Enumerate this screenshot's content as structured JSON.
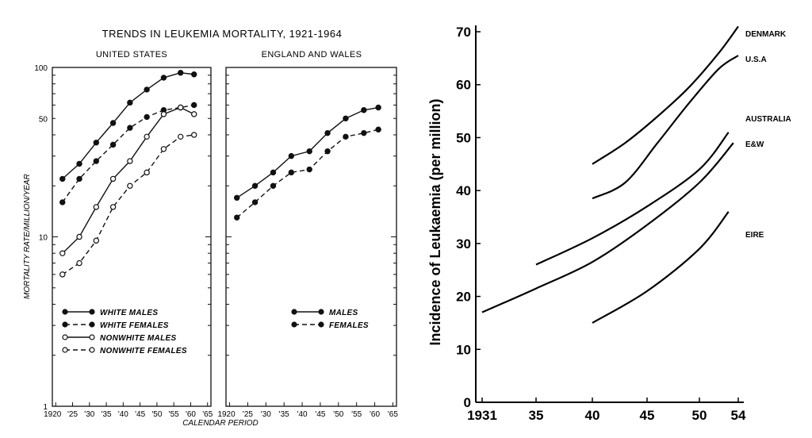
{
  "chart_data": [
    {
      "type": "line",
      "title": "TRENDS IN LEUKEMIA MORTALITY, 1921-1964",
      "ylabel": "MORTALITY RATE/MILLION/YEAR",
      "xlabel": "CALENDAR PERIOD",
      "y_scale": "log",
      "ylim": [
        1,
        100
      ],
      "y_ticks": [
        "1",
        "10",
        "50",
        "100"
      ],
      "grid": false,
      "panels": [
        {
          "name": "UNITED STATES",
          "x_ticks": [
            "1920",
            "'25",
            "'30",
            "'35",
            "'40",
            "'45",
            "'50",
            "'55",
            "'60",
            "'65"
          ],
          "series": [
            {
              "name": "WHITE MALES",
              "style": "solid-filled",
              "x": [
                1922,
                1927,
                1932,
                1937,
                1942,
                1947,
                1952,
                1957,
                1961
              ],
              "y": [
                22,
                27,
                36,
                47,
                62,
                74,
                87,
                93,
                91
              ]
            },
            {
              "name": "WHITE FEMALES",
              "style": "dashed-filled",
              "x": [
                1922,
                1927,
                1932,
                1937,
                1942,
                1947,
                1952,
                1957,
                1961
              ],
              "y": [
                16,
                22,
                28,
                35,
                44,
                51,
                56,
                58,
                60
              ]
            },
            {
              "name": "NONWHITE MALES",
              "style": "solid-open",
              "x": [
                1922,
                1927,
                1932,
                1937,
                1942,
                1947,
                1952,
                1957,
                1961
              ],
              "y": [
                8,
                10,
                15,
                22,
                28,
                39,
                53,
                58,
                53
              ]
            },
            {
              "name": "NONWHITE FEMALES",
              "style": "dashed-open",
              "x": [
                1922,
                1927,
                1932,
                1937,
                1942,
                1947,
                1952,
                1957,
                1961
              ],
              "y": [
                6,
                7,
                9.5,
                15,
                20,
                24,
                33,
                39,
                40
              ]
            }
          ]
        },
        {
          "name": "ENGLAND AND WALES",
          "x_ticks": [
            "1920",
            "'25",
            "'30",
            "'35",
            "'40",
            "'45",
            "'50",
            "'55",
            "'60",
            "'65"
          ],
          "series": [
            {
              "name": "MALES",
              "style": "solid-filled",
              "x": [
                1922,
                1927,
                1932,
                1937,
                1942,
                1947,
                1952,
                1957,
                1961
              ],
              "y": [
                17,
                20,
                24,
                30,
                32,
                41,
                50,
                56,
                58
              ]
            },
            {
              "name": "FEMALES",
              "style": "dashed-filled",
              "x": [
                1922,
                1927,
                1932,
                1937,
                1942,
                1947,
                1952,
                1957,
                1961
              ],
              "y": [
                13,
                16,
                20,
                24,
                25,
                32,
                39,
                41,
                43
              ]
            }
          ]
        }
      ],
      "legend_position": "bottom-left"
    },
    {
      "type": "line",
      "title": "",
      "ylabel": "Incidence of Leukaemia (per million)",
      "xlabel": "",
      "ylim": [
        0,
        70
      ],
      "y_ticks": [
        "0",
        "10",
        "20",
        "30",
        "40",
        "50",
        "60",
        "70"
      ],
      "x_ticks": [
        "1931",
        "35",
        "40",
        "45",
        "50",
        "54"
      ],
      "x_tick_values": [
        1931,
        1935,
        1940,
        1945,
        1950,
        1954
      ],
      "grid": false,
      "series": [
        {
          "name": "DENMARK",
          "x": [
            1940,
            1943,
            1946,
            1949,
            1952,
            1954
          ],
          "y": [
            45,
            49,
            54,
            59.5,
            66,
            71
          ]
        },
        {
          "name": "U.S.A",
          "x": [
            1940,
            1943,
            1946,
            1949,
            1952,
            1954
          ],
          "y": [
            38.5,
            41.5,
            49,
            56.5,
            63,
            65.5
          ]
        },
        {
          "name": "AUSTRALIA",
          "x": [
            1935,
            1940,
            1945,
            1950,
            1953
          ],
          "y": [
            26,
            31,
            37,
            44,
            51
          ]
        },
        {
          "name": "E&W",
          "x": [
            1931,
            1935,
            1940,
            1945,
            1950,
            1953.5
          ],
          "y": [
            17,
            21.5,
            26.5,
            33.5,
            41.5,
            49
          ]
        },
        {
          "name": "EIRE",
          "x": [
            1940,
            1945,
            1950,
            1953
          ],
          "y": [
            15,
            21,
            29,
            36
          ]
        }
      ]
    }
  ]
}
